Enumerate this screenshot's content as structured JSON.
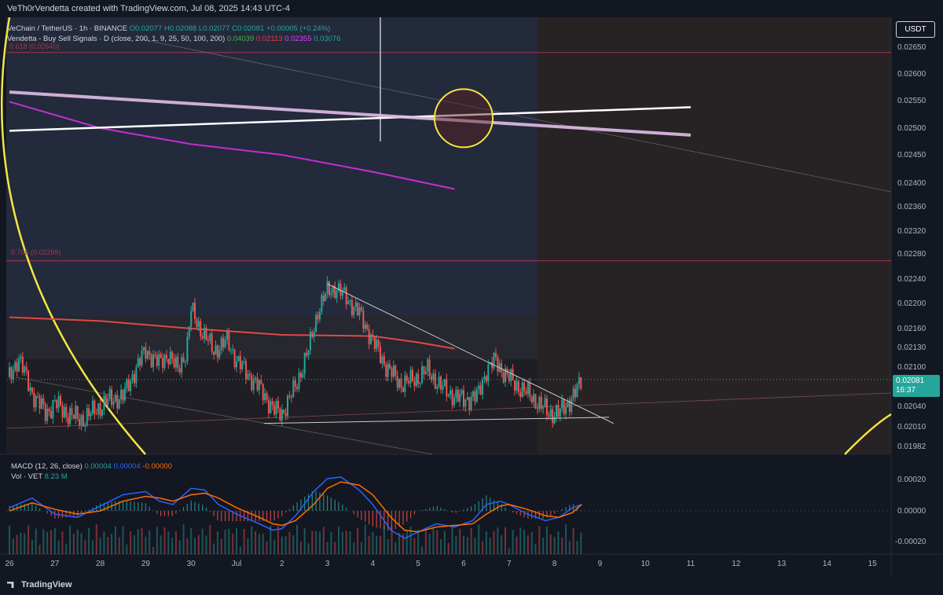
{
  "header_text": "VeTh0rVendetta created with TradingView.com, Jul 08, 2025 14:43 UTC-4",
  "legend": {
    "symbol_line": "VeChain / TetherUS · 1h · BINANCE",
    "o": "O0.02077",
    "h": "H0.02088",
    "l": "L0.02077",
    "c": "C0.02081",
    "chg": "+0.00005 (+0.24%)",
    "indicator_name": "Vendetta - Buy Sell Signals · D (close, 200, 1, 9, 25, 50, 100, 200)",
    "indicator_values": [
      "0.04039",
      "0.02113",
      "0.02355",
      "0.03076"
    ],
    "indicator_colors": [
      "#4caf50",
      "#f23645",
      "#e040fb",
      "#26a69a"
    ],
    "macd_name": "MACD (12, 26, close)",
    "macd_values": [
      "0.00004",
      "0.00004",
      "-0.00000"
    ],
    "macd_colors": [
      "#26a69a",
      "#2962ff",
      "#ff6d00"
    ],
    "vol_name": "Vol · VET",
    "vol_value": "8.23 M"
  },
  "fib_labels": {
    "top": "0.618 (0.02640)",
    "mid": "0.786 (0.02269)"
  },
  "currency_button": "USDT",
  "last_price": {
    "price": "0.02081",
    "countdown": "16:37"
  },
  "colors": {
    "bg": "#131722",
    "up": "#26a69a",
    "down": "#ef5350",
    "ma_red": "#e04848",
    "ma_purple": "#c030d0",
    "circle": "#f5e642",
    "trend_white": "#ffffff",
    "trend_pink": "#e1bee7"
  },
  "brand": "TradingView",
  "chart_data": [
    {
      "type": "candlestick",
      "title": "VeChain / TetherUS · 1h · BINANCE",
      "x_ticks": [
        "26",
        "27",
        "28",
        "29",
        "30",
        "Jul",
        "2",
        "3",
        "4",
        "5",
        "6",
        "7",
        "8",
        "9",
        "10",
        "11",
        "12",
        "13",
        "14",
        "15"
      ],
      "y_ticks": [
        "0.02650",
        "0.02600",
        "0.02550",
        "0.02500",
        "0.02450",
        "0.02400",
        "0.02360",
        "0.02320",
        "0.02280",
        "0.02240",
        "0.02200",
        "0.02160",
        "0.02130",
        "0.02100",
        "0.02040",
        "0.02010",
        "0.01982"
      ],
      "close_path": [
        [
          26.0,
          0.02085
        ],
        [
          26.2,
          0.02115
        ],
        [
          26.5,
          0.0206
        ],
        [
          26.8,
          0.0203
        ],
        [
          27.0,
          0.02045
        ],
        [
          27.3,
          0.02028
        ],
        [
          27.6,
          0.0202
        ],
        [
          27.9,
          0.02035
        ],
        [
          28.2,
          0.0205
        ],
        [
          28.5,
          0.02055
        ],
        [
          28.8,
          0.021
        ],
        [
          29.0,
          0.02125
        ],
        [
          29.3,
          0.02105
        ],
        [
          29.5,
          0.0212
        ],
        [
          29.7,
          0.02095
        ],
        [
          29.9,
          0.02125
        ],
        [
          30.0,
          0.0219
        ],
        [
          30.2,
          0.0216
        ],
        [
          30.5,
          0.02125
        ],
        [
          30.8,
          0.0214
        ],
        [
          31.0,
          0.0211
        ],
        [
          31.3,
          0.02085
        ],
        [
          31.6,
          0.0206
        ],
        [
          31.8,
          0.02035
        ],
        [
          32.0,
          0.0203
        ],
        [
          32.3,
          0.0207
        ],
        [
          32.6,
          0.0213
        ],
        [
          32.8,
          0.0219
        ],
        [
          33.0,
          0.0222
        ],
        [
          33.2,
          0.02225
        ],
        [
          33.4,
          0.0221
        ],
        [
          33.7,
          0.02185
        ],
        [
          34.0,
          0.0214
        ],
        [
          34.3,
          0.021
        ],
        [
          34.6,
          0.02075
        ],
        [
          34.9,
          0.0208
        ],
        [
          35.2,
          0.02095
        ],
        [
          35.5,
          0.0207
        ],
        [
          35.8,
          0.02055
        ],
        [
          36.0,
          0.0205
        ],
        [
          36.3,
          0.02055
        ],
        [
          36.5,
          0.02095
        ],
        [
          36.7,
          0.0211
        ],
        [
          36.9,
          0.0209
        ],
        [
          37.2,
          0.0207
        ],
        [
          37.5,
          0.02055
        ],
        [
          37.7,
          0.0204
        ],
        [
          37.9,
          0.0203
        ],
        [
          38.1,
          0.0203
        ],
        [
          38.3,
          0.02045
        ],
        [
          38.5,
          0.02065
        ],
        [
          38.6,
          0.02081
        ]
      ],
      "lines": [
        {
          "name": "",
          "color": "#e04848",
          "points": [
            [
              26.0,
              0.02178
            ],
            [
              28.0,
              0.02172
            ],
            [
              30.0,
              0.0216
            ],
            [
              32.0,
              0.0215
            ],
            [
              34.0,
              0.02148
            ],
            [
              35.0,
              0.02138
            ],
            [
              35.8,
              0.02128
            ]
          ]
        },
        {
          "name": "",
          "color": "#c030d0",
          "points": [
            [
              26.0,
              0.02548
            ],
            [
              28.0,
              0.025
            ],
            [
              30.0,
              0.0247
            ],
            [
              32.0,
              0.0245
            ],
            [
              34.0,
              0.0242
            ],
            [
              35.8,
              0.0239
            ]
          ]
        }
      ],
      "shapes": [
        {
          "type": "trendline",
          "color": "#ffffff",
          "from": [
            26.0,
            0.02495
          ],
          "to": [
            41.0,
            0.02538
          ]
        },
        {
          "type": "trendline",
          "color": "#e1bee7",
          "from": [
            26.0,
            0.02566
          ],
          "to": [
            41.0,
            0.02487
          ]
        },
        {
          "type": "trendline",
          "color": "#cccccc",
          "from": [
            33.0,
            0.02232
          ],
          "to": [
            39.3,
            0.02015
          ]
        },
        {
          "type": "trendline",
          "color": "#cccccc",
          "from": [
            31.6,
            0.02015
          ],
          "to": [
            39.2,
            0.02024
          ]
        },
        {
          "type": "circle",
          "color": "#f5e642",
          "center": [
            36.0,
            0.02518
          ]
        },
        {
          "type": "hline",
          "color": "#a03850",
          "value": 0.0264
        },
        {
          "type": "hline",
          "color": "#a03850",
          "value": 0.02269
        }
      ]
    },
    {
      "type": "line",
      "title": "MACD (12, 26, close)",
      "y_ticks": [
        "0.00020",
        "0.00000",
        "-0.00020"
      ],
      "series": [
        {
          "name": "",
          "color": "#2962ff",
          "points": [
            [
              26.0,
              2e-05
            ],
            [
              26.5,
              8e-05
            ],
            [
              27.0,
              -2e-05
            ],
            [
              27.5,
              -4e-05
            ],
            [
              28.0,
              3e-05
            ],
            [
              28.5,
              0.0001
            ],
            [
              29.0,
              0.00012
            ],
            [
              29.3,
              6e-05
            ],
            [
              29.6,
              4e-05
            ],
            [
              30.0,
              0.00014
            ],
            [
              30.3,
              0.00013
            ],
            [
              30.6,
              4e-05
            ],
            [
              31.0,
              -2e-05
            ],
            [
              31.5,
              -8e-05
            ],
            [
              31.8,
              -0.00012
            ],
            [
              32.0,
              -0.00011
            ],
            [
              32.3,
              -3e-05
            ],
            [
              32.7,
              0.00012
            ],
            [
              33.0,
              0.0002
            ],
            [
              33.3,
              0.00021
            ],
            [
              33.7,
              0.00013
            ],
            [
              34.0,
              4e-05
            ],
            [
              34.4,
              -0.00012
            ],
            [
              34.7,
              -0.00017
            ],
            [
              35.0,
              -0.00013
            ],
            [
              35.4,
              -8e-05
            ],
            [
              35.8,
              -0.0001
            ],
            [
              36.2,
              -6e-05
            ],
            [
              36.5,
              4e-05
            ],
            [
              36.8,
              6e-05
            ],
            [
              37.0,
              4e-05
            ],
            [
              37.4,
              -2e-05
            ],
            [
              37.8,
              -6e-05
            ],
            [
              38.1,
              -4e-05
            ],
            [
              38.4,
              2e-05
            ],
            [
              38.6,
              4e-05
            ]
          ]
        },
        {
          "name": "",
          "color": "#ff6d00",
          "points": [
            [
              26.0,
              0.0
            ],
            [
              26.5,
              5e-05
            ],
            [
              27.0,
              1e-05
            ],
            [
              27.5,
              -2e-05
            ],
            [
              28.0,
              0.0
            ],
            [
              28.5,
              6e-05
            ],
            [
              29.0,
              9e-05
            ],
            [
              29.3,
              8e-05
            ],
            [
              29.6,
              6e-05
            ],
            [
              30.0,
              0.0001
            ],
            [
              30.3,
              0.00011
            ],
            [
              30.6,
              8e-05
            ],
            [
              31.0,
              2e-05
            ],
            [
              31.5,
              -4e-05
            ],
            [
              31.8,
              -8e-05
            ],
            [
              32.0,
              -9e-05
            ],
            [
              32.3,
              -6e-05
            ],
            [
              32.7,
              4e-05
            ],
            [
              33.0,
              0.00014
            ],
            [
              33.3,
              0.00018
            ],
            [
              33.7,
              0.00016
            ],
            [
              34.0,
              0.0001
            ],
            [
              34.4,
              -4e-05
            ],
            [
              34.7,
              -0.00012
            ],
            [
              35.0,
              -0.00013
            ],
            [
              35.4,
              -0.0001
            ],
            [
              35.8,
              -9e-05
            ],
            [
              36.2,
              -8e-05
            ],
            [
              36.5,
              -2e-05
            ],
            [
              36.8,
              3e-05
            ],
            [
              37.0,
              4e-05
            ],
            [
              37.4,
              1e-05
            ],
            [
              37.8,
              -3e-05
            ],
            [
              38.1,
              -4e-05
            ],
            [
              38.4,
              -1e-05
            ],
            [
              38.6,
              4e-05
            ]
          ]
        }
      ]
    }
  ]
}
